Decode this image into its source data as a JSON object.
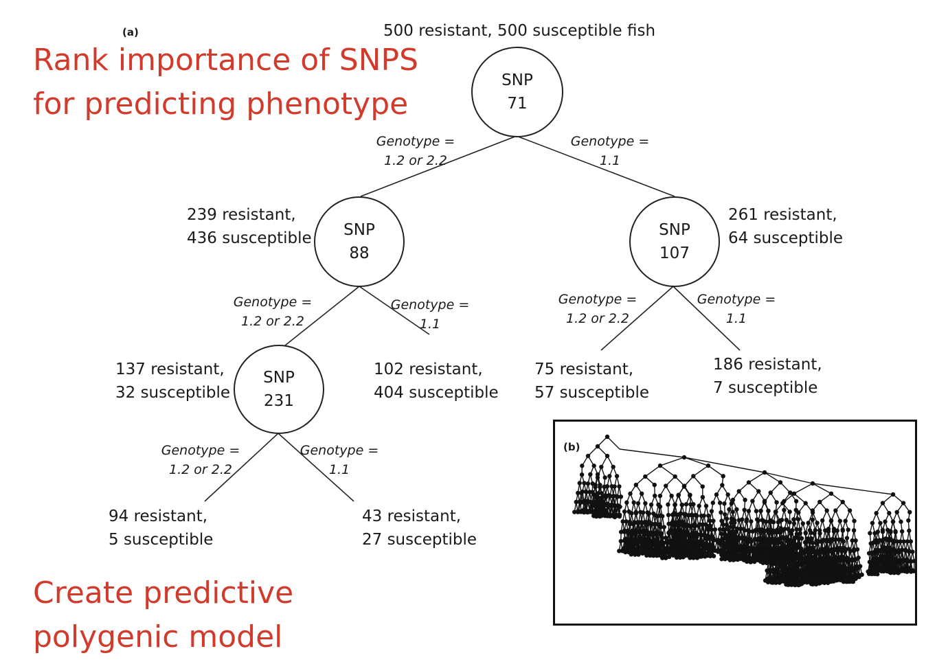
{
  "panel_a": {
    "tag": "(a)",
    "root_caption": "500 resistant, 500 susceptible fish",
    "nodes": {
      "snp71": {
        "l1": "SNP",
        "l2": "71"
      },
      "snp88": {
        "l1": "SNP",
        "l2": "88"
      },
      "snp107": {
        "l1": "SNP",
        "l2": "107"
      },
      "snp231": {
        "l1": "SNP",
        "l2": "231"
      }
    },
    "genotype_word": "Genotype =",
    "genotype_het": "1.2 or 2.2",
    "genotype_hom": "1.1",
    "counts": {
      "n88": {
        "l1": "239 resistant,",
        "l2": "436 susceptible"
      },
      "n107": {
        "l1": "261 resistant,",
        "l2": "64 susceptible"
      },
      "n231": {
        "l1": "137 resistant,",
        "l2": "32 susceptible"
      },
      "leaf88r": {
        "l1": "102 resistant,",
        "l2": "404 susceptible"
      },
      "leaf107l": {
        "l1": "75 resistant,",
        "l2": "57 susceptible"
      },
      "leaf107r": {
        "l1": "186 resistant,",
        "l2": "7 susceptible"
      },
      "leaf231l": {
        "l1": "94 resistant,",
        "l2": "5 susceptible"
      },
      "leaf231r": {
        "l1": "43 resistant,",
        "l2": "27 susceptible"
      }
    }
  },
  "panel_b": {
    "tag": "(b)"
  },
  "annotations": {
    "top_l1": "Rank importance of SNPS",
    "top_l2": "for predicting phenotype",
    "bottom_l1": "Create predictive",
    "bottom_l2": "polygenic model"
  },
  "colors": {
    "annotation": "#d23a2c",
    "ink": "#1a1a1a"
  }
}
